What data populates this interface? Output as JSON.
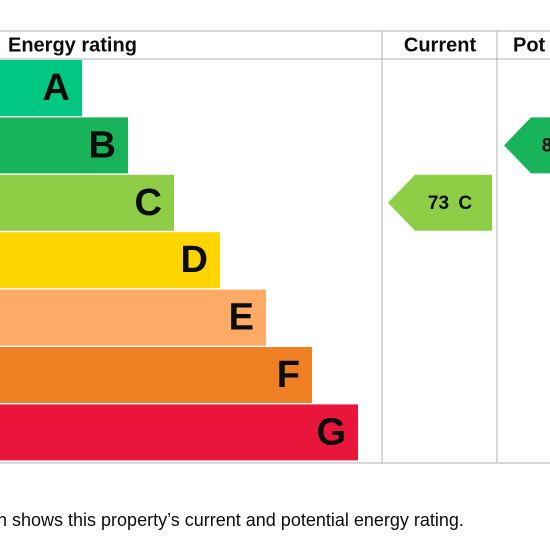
{
  "header": {
    "rating": "Energy rating",
    "current": "Current",
    "potential": "Pot"
  },
  "bands": [
    {
      "letter": "A",
      "color": "#00c781"
    },
    {
      "letter": "B",
      "color": "#19b459"
    },
    {
      "letter": "C",
      "color": "#8dce46"
    },
    {
      "letter": "D",
      "color": "#ffd500"
    },
    {
      "letter": "E",
      "color": "#fcaa65"
    },
    {
      "letter": "F",
      "color": "#ef8023"
    },
    {
      "letter": "G",
      "color": "#e9153b"
    }
  ],
  "current": {
    "label": "73 C",
    "band": 2
  },
  "potential": {
    "label": "8",
    "band": 1
  },
  "caption": "n shows this property’s current and potential energy rating."
}
